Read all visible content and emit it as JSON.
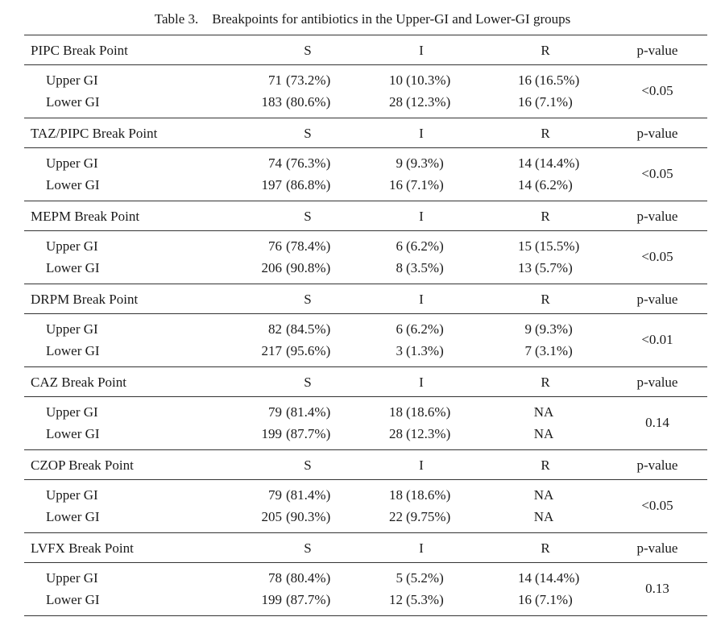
{
  "caption": "Table 3.    Breakpoints for antibiotics in the Upper-GI and Lower-GI groups",
  "col_headers": {
    "s": "S",
    "i": "I",
    "r": "R",
    "p": "p-value"
  },
  "groups": [
    {
      "label": "PIPC Break Point",
      "p": "<0.05",
      "rows": [
        {
          "label": "Upper GI",
          "s_n": "71",
          "s_pct": "(73.2%)",
          "i_n": "10",
          "i_pct": "(10.3%)",
          "r_n": "16",
          "r_pct": "(16.5%)"
        },
        {
          "label": "Lower GI",
          "s_n": "183",
          "s_pct": "(80.6%)",
          "i_n": "28",
          "i_pct": "(12.3%)",
          "r_n": "16",
          "r_pct": "(7.1%)"
        }
      ]
    },
    {
      "label": "TAZ/PIPC Break Point",
      "p": "<0.05",
      "rows": [
        {
          "label": "Upper GI",
          "s_n": "74",
          "s_pct": "(76.3%)",
          "i_n": "9",
          "i_pct": "(9.3%)",
          "r_n": "14",
          "r_pct": "(14.4%)"
        },
        {
          "label": "Lower GI",
          "s_n": "197",
          "s_pct": "(86.8%)",
          "i_n": "16",
          "i_pct": "(7.1%)",
          "r_n": "14",
          "r_pct": "(6.2%)"
        }
      ]
    },
    {
      "label": "MEPM Break Point",
      "p": "<0.05",
      "rows": [
        {
          "label": "Upper GI",
          "s_n": "76",
          "s_pct": "(78.4%)",
          "i_n": "6",
          "i_pct": "(6.2%)",
          "r_n": "15",
          "r_pct": "(15.5%)"
        },
        {
          "label": "Lower GI",
          "s_n": "206",
          "s_pct": "(90.8%)",
          "i_n": "8",
          "i_pct": "(3.5%)",
          "r_n": "13",
          "r_pct": "(5.7%)"
        }
      ]
    },
    {
      "label": "DRPM Break Point",
      "p": "<0.01",
      "rows": [
        {
          "label": "Upper GI",
          "s_n": "82",
          "s_pct": "(84.5%)",
          "i_n": "6",
          "i_pct": "(6.2%)",
          "r_n": "9",
          "r_pct": "(9.3%)"
        },
        {
          "label": "Lower GI",
          "s_n": "217",
          "s_pct": "(95.6%)",
          "i_n": "3",
          "i_pct": "(1.3%)",
          "r_n": "7",
          "r_pct": "(3.1%)"
        }
      ]
    },
    {
      "label": "CAZ Break Point",
      "p": "0.14",
      "rows": [
        {
          "label": "Upper GI",
          "s_n": "79",
          "s_pct": "(81.4%)",
          "i_n": "18",
          "i_pct": "(18.6%)",
          "r_na": "NA"
        },
        {
          "label": "Lower GI",
          "s_n": "199",
          "s_pct": "(87.7%)",
          "i_n": "28",
          "i_pct": "(12.3%)",
          "r_na": "NA"
        }
      ]
    },
    {
      "label": "CZOP Break Point",
      "p": "<0.05",
      "rows": [
        {
          "label": "Upper GI",
          "s_n": "79",
          "s_pct": "(81.4%)",
          "i_n": "18",
          "i_pct": "(18.6%)",
          "r_na": "NA"
        },
        {
          "label": "Lower GI",
          "s_n": "205",
          "s_pct": "(90.3%)",
          "i_n": "22",
          "i_pct": "(9.75%)",
          "r_na": "NA"
        }
      ]
    },
    {
      "label": "LVFX Break Point",
      "p": "0.13",
      "rows": [
        {
          "label": "Upper GI",
          "s_n": "78",
          "s_pct": "(80.4%)",
          "i_n": "5",
          "i_pct": "(5.2%)",
          "r_n": "14",
          "r_pct": "(14.4%)"
        },
        {
          "label": "Lower GI",
          "s_n": "199",
          "s_pct": "(87.7%)",
          "i_n": "12",
          "i_pct": "(5.3%)",
          "r_n": "16",
          "r_pct": "(7.1%)"
        }
      ]
    }
  ]
}
